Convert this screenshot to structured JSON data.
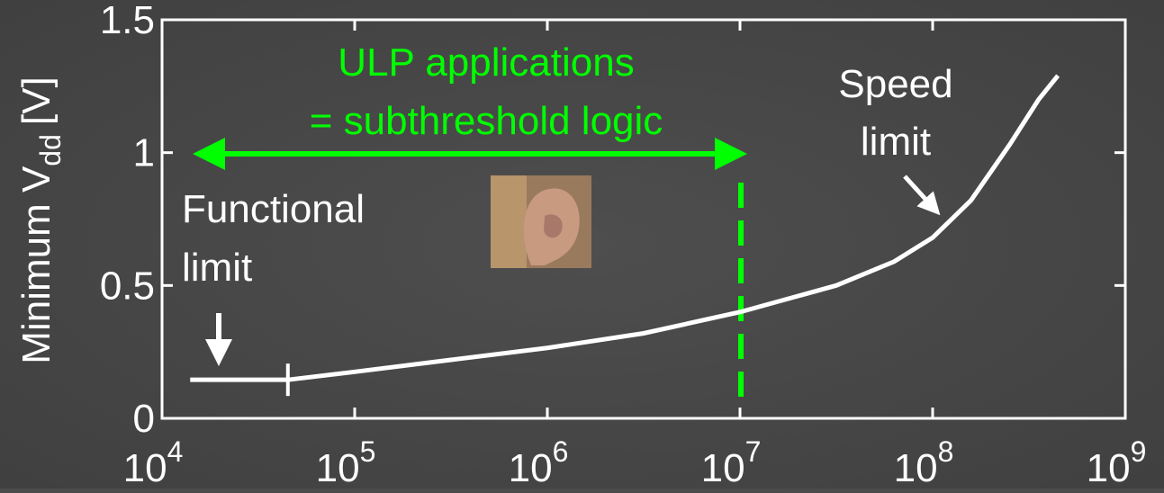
{
  "chart_data": {
    "type": "line",
    "y_label": {
      "text": "Minimum V",
      "subscript": "dd",
      "suffix": "[V]"
    },
    "x_scale": "log",
    "xlim": [
      10000,
      1000000000
    ],
    "xticks": [
      {
        "value": 10000,
        "label": "10",
        "exponent": "4"
      },
      {
        "value": 100000,
        "label": "10",
        "exponent": "5"
      },
      {
        "value": 1000000,
        "label": "10",
        "exponent": "6"
      },
      {
        "value": 10000000,
        "label": "10",
        "exponent": "7"
      },
      {
        "value": 100000000,
        "label": "10",
        "exponent": "8"
      },
      {
        "value": 1000000000,
        "label": "10",
        "exponent": "9"
      }
    ],
    "ylim": [
      0,
      1.5
    ],
    "yticks": [
      0,
      0.5,
      1,
      1.5
    ],
    "series": [
      {
        "color": "#ffffff",
        "x": [
          14000,
          45000,
          100000,
          316000,
          1000000,
          3160000,
          10000000,
          31600000,
          63100000,
          100000000,
          158000000,
          251000000,
          355000000,
          447000000
        ],
        "values": [
          0.145,
          0.145,
          0.175,
          0.22,
          0.265,
          0.32,
          0.4,
          0.5,
          0.59,
          0.68,
          0.82,
          1.03,
          1.2,
          1.29
        ]
      }
    ],
    "annotations": {
      "ulp_line1": "ULP applications",
      "ulp_line2": "= subthreshold logic",
      "speed_line1": "Speed",
      "speed_line2": "limit",
      "functional_line1": "Functional",
      "functional_line2": "limit"
    }
  }
}
